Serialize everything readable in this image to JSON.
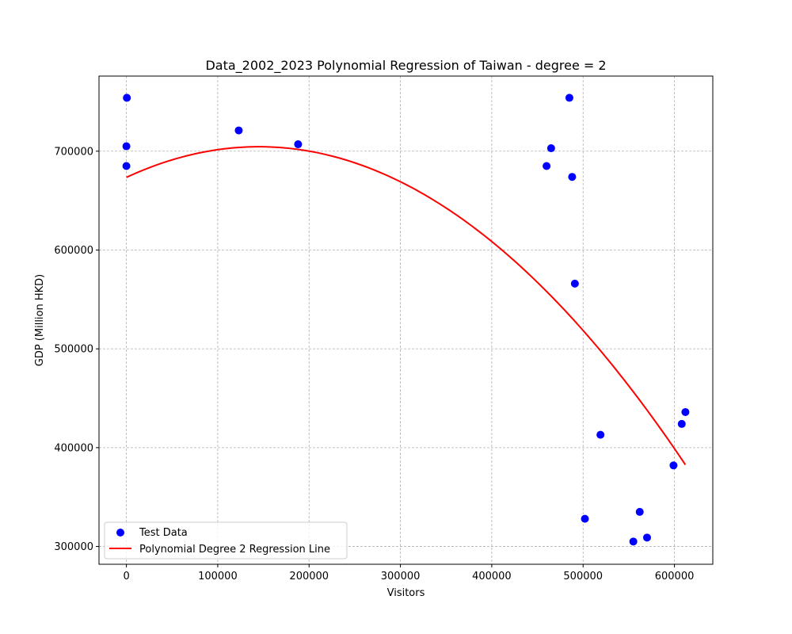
{
  "chart_data": {
    "type": "scatter",
    "title": "Data_2002_2023 Polynomial Regression of Taiwan - degree = 2",
    "xlabel": "Visitors",
    "ylabel": "GDP (Million HKD)",
    "xlim": [
      -30000,
      642000
    ],
    "ylim": [
      282000,
      776000
    ],
    "x_ticks": [
      0,
      100000,
      200000,
      300000,
      400000,
      500000,
      600000
    ],
    "y_ticks": [
      300000,
      400000,
      500000,
      600000,
      700000
    ],
    "grid": true,
    "legend_position": "lower-left",
    "colors": {
      "points": "#0000ff",
      "line": "#ff0000"
    },
    "series": [
      {
        "name": "Test Data",
        "kind": "scatter",
        "points": [
          [
            500,
            754000
          ],
          [
            0,
            705000
          ],
          [
            0,
            685000
          ],
          [
            123000,
            721000
          ],
          [
            188000,
            707000
          ],
          [
            460000,
            685000
          ],
          [
            465000,
            703000
          ],
          [
            485000,
            754000
          ],
          [
            488000,
            674000
          ],
          [
            491000,
            566000
          ],
          [
            502000,
            328000
          ],
          [
            519000,
            413000
          ],
          [
            555000,
            305000
          ],
          [
            562000,
            335000
          ],
          [
            570000,
            309000
          ],
          [
            599000,
            382000
          ],
          [
            608000,
            424000
          ],
          [
            612000,
            436000
          ]
        ]
      },
      {
        "name": "Polynomial Degree 2 Regression Line",
        "kind": "curve",
        "x_range": [
          0,
          612000
        ],
        "coefficients": {
          "a": -1.4755e-06,
          "b": 0.4279,
          "c": 673500
        }
      }
    ]
  }
}
